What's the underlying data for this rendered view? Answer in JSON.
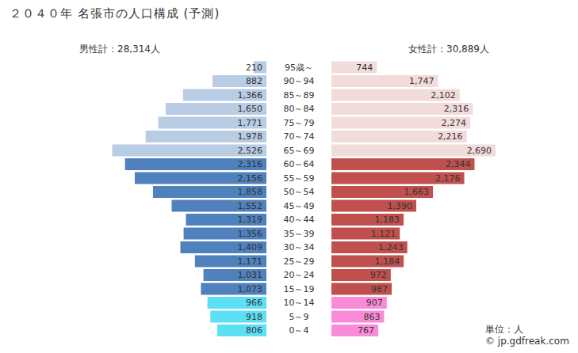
{
  "chart_data": {
    "type": "bar",
    "orientation": "horizontal",
    "title": "２０４０年 名張市の人口構成 (予測)",
    "left_total": "男性計：28,314人",
    "right_total": "女性計：30,889人",
    "unit_note": "単位：人",
    "credit": "© jp.gdfreak.com",
    "categories": [
      "95歳～",
      "90～94",
      "85～89",
      "80～84",
      "75～79",
      "70～74",
      "65～69",
      "60～64",
      "55～59",
      "50～54",
      "45～49",
      "40～44",
      "35～39",
      "30～34",
      "25～29",
      "20～24",
      "15～19",
      "10～14",
      "5～9",
      "0～4"
    ],
    "xlim": [
      0,
      3000
    ],
    "tick_labels": false,
    "data_labels": true,
    "series": [
      {
        "colors": [
          "#b8cce4",
          "#b8cce4",
          "#b8cce4",
          "#b8cce4",
          "#b8cce4",
          "#b8cce4",
          "#b8cce4",
          "#4f81bd",
          "#4f81bd",
          "#4f81bd",
          "#4f81bd",
          "#4f81bd",
          "#4f81bd",
          "#4f81bd",
          "#4f81bd",
          "#4f81bd",
          "#4f81bd",
          "#5be0f5",
          "#5be0f5",
          "#5be0f5"
        ],
        "values": [
          210,
          882,
          1366,
          1650,
          1771,
          1978,
          2526,
          2316,
          2156,
          1858,
          1552,
          1319,
          1356,
          1409,
          1171,
          1031,
          1073,
          966,
          918,
          806
        ],
        "value_labels": [
          "210",
          "882",
          "1,366",
          "1,650",
          "1,771",
          "1,978",
          "2,526",
          "2,316",
          "2,156",
          "1,858",
          "1,552",
          "1,319",
          "1,356",
          "1,409",
          "1,171",
          "1,031",
          "1,073",
          "966",
          "918",
          "806"
        ]
      },
      {
        "colors": [
          "#f2dcdb",
          "#f2dcdb",
          "#f2dcdb",
          "#f2dcdb",
          "#f2dcdb",
          "#f2dcdb",
          "#f2dcdb",
          "#c0504d",
          "#c0504d",
          "#c0504d",
          "#c0504d",
          "#c0504d",
          "#c0504d",
          "#c0504d",
          "#c0504d",
          "#c0504d",
          "#c0504d",
          "#f98bd8",
          "#f98bd8",
          "#f98bd8"
        ],
        "values": [
          744,
          1747,
          2102,
          2316,
          2274,
          2216,
          2690,
          2344,
          2176,
          1663,
          1390,
          1183,
          1121,
          1243,
          1184,
          972,
          987,
          907,
          863,
          767
        ],
        "value_labels": [
          "744",
          "1,747",
          "2,102",
          "2,316",
          "2,274",
          "2,216",
          "2,690",
          "2,344",
          "2,176",
          "1,663",
          "1,390",
          "1,183",
          "1,121",
          "1,243",
          "1,184",
          "972",
          "987",
          "907",
          "863",
          "767"
        ]
      }
    ]
  }
}
